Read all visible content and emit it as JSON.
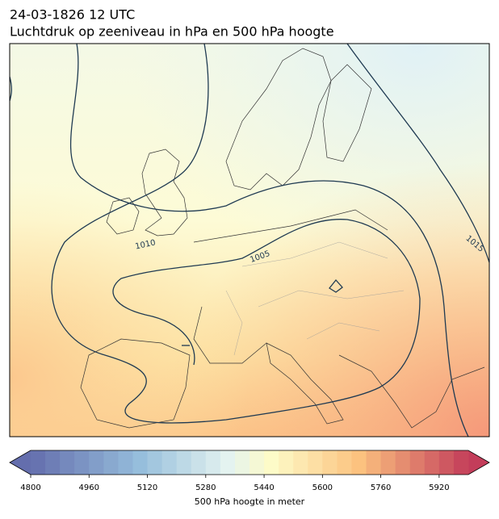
{
  "title": "24-03-1826 12 UTC",
  "subtitle": "Luchtdruk op zeeniveau in hPa en 500 hPa hoogte",
  "contour_labels": [
    1010,
    1005,
    1015
  ],
  "colorbar": {
    "range": [
      4800,
      6000
    ],
    "ticks": [
      4800,
      4960,
      5120,
      5280,
      5440,
      5600,
      5760,
      5920
    ],
    "label": "500 hPa hoogte in meter"
  }
}
